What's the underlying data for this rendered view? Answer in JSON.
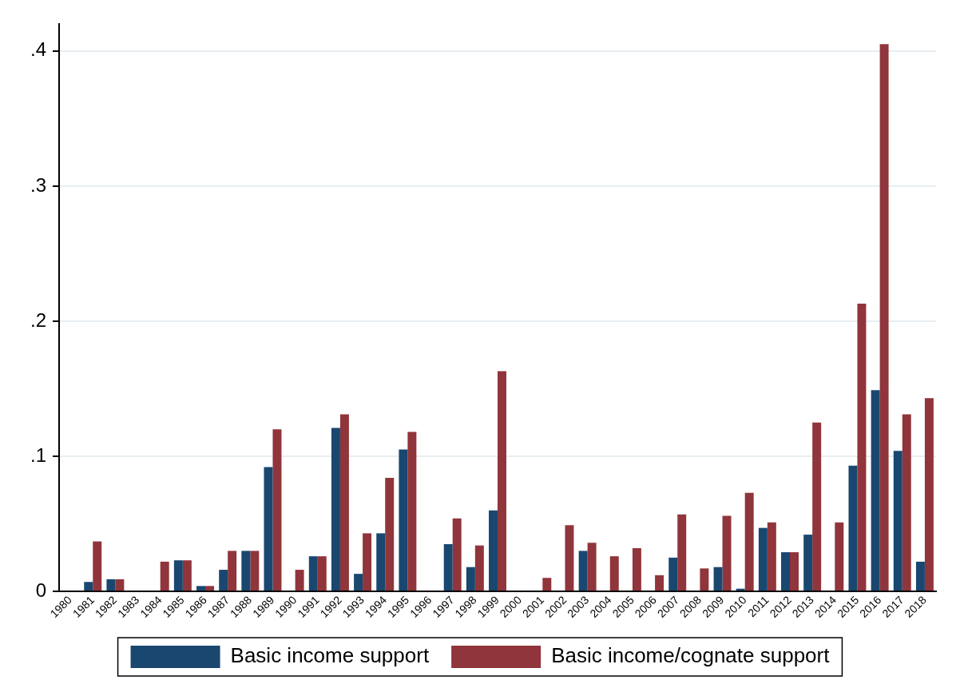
{
  "chart_data": {
    "type": "bar",
    "categories": [
      "1980",
      "1981",
      "1982",
      "1983",
      "1984",
      "1985",
      "1986",
      "1987",
      "1988",
      "1989",
      "1990",
      "1991",
      "1992",
      "1993",
      "1994",
      "1995",
      "1996",
      "1997",
      "1998",
      "1999",
      "2000",
      "2001",
      "2002",
      "2003",
      "2004",
      "2005",
      "2006",
      "2007",
      "2008",
      "2009",
      "2010",
      "2011",
      "2012",
      "2013",
      "2014",
      "2015",
      "2016",
      "2017",
      "2018"
    ],
    "series": [
      {
        "name": "Basic income support",
        "color": "#1a476f",
        "values": [
          0,
          0.007,
          0.009,
          0,
          0,
          0.023,
          0.004,
          0.016,
          0.03,
          0.092,
          0,
          0.026,
          0.121,
          0.013,
          0.043,
          0.105,
          0,
          0.035,
          0.018,
          0.06,
          0,
          0,
          0,
          0.03,
          0,
          0,
          0,
          0.025,
          0,
          0.018,
          0.002,
          0.047,
          0.029,
          0.042,
          0,
          0.093,
          0.149,
          0.104,
          0.022
        ]
      },
      {
        "name": "Basic income/cognate support",
        "color": "#90353b",
        "values": [
          0,
          0.037,
          0.009,
          0,
          0.022,
          0.023,
          0.004,
          0.03,
          0.03,
          0.12,
          0.016,
          0.026,
          0.131,
          0.043,
          0.084,
          0.118,
          0,
          0.054,
          0.034,
          0.163,
          0,
          0.01,
          0.049,
          0.036,
          0.026,
          0.032,
          0.012,
          0.057,
          0.017,
          0.056,
          0.073,
          0.051,
          0.029,
          0.125,
          0.051,
          0.213,
          0.405,
          0.131,
          0.143
        ]
      }
    ],
    "ylim": [
      0,
      0.42
    ],
    "yticks": [
      {
        "value": 0,
        "label": "0"
      },
      {
        "value": 0.1,
        "label": ".1"
      },
      {
        "value": 0.2,
        "label": ".2"
      },
      {
        "value": 0.3,
        "label": ".3"
      },
      {
        "value": 0.4,
        "label": ".4"
      }
    ],
    "grid": "y",
    "legend": "bottom"
  }
}
